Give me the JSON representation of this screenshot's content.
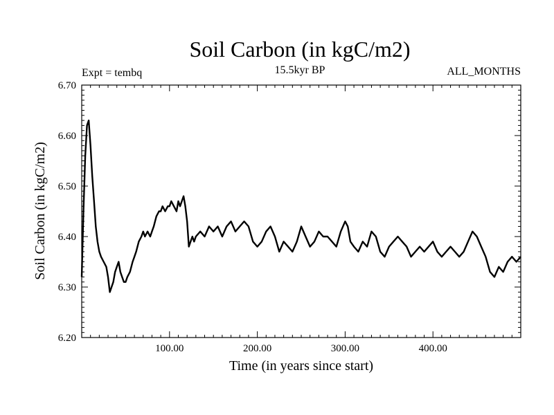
{
  "header": {
    "title": "Soil Carbon (in kgC/m2)",
    "subtitle_left": "Expt = tembq",
    "subtitle_center": "15.5kyr BP",
    "subtitle_right": "ALL_MONTHS"
  },
  "chart_data": {
    "type": "line",
    "title": "Soil Carbon (in kgC/m2)",
    "xlabel": "Time (in years since start)",
    "ylabel": "Soil Carbon (in kgC/m2)",
    "xlim": [
      0,
      500
    ],
    "ylim": [
      6.2,
      6.7
    ],
    "x_ticks": [
      100,
      200,
      300,
      400
    ],
    "x_tick_labels": [
      "100.00",
      "200.00",
      "300.00",
      "400.00"
    ],
    "y_ticks": [
      6.2,
      6.3,
      6.4,
      6.5,
      6.6,
      6.7
    ],
    "y_tick_labels": [
      "6.20",
      "6.30",
      "6.40",
      "6.50",
      "6.60",
      "6.70"
    ],
    "grid": false,
    "legend": "none",
    "line_color": "#000000",
    "series": [
      {
        "x": [
          0,
          2,
          4,
          6,
          8,
          10,
          12,
          14,
          16,
          18,
          20,
          22,
          25,
          28,
          30,
          32,
          34,
          36,
          38,
          40,
          42,
          44,
          46,
          48,
          50,
          52,
          55,
          58,
          60,
          62,
          65,
          68,
          70,
          72,
          75,
          78,
          80,
          82,
          85,
          88,
          90,
          92,
          95,
          98,
          100,
          102,
          105,
          108,
          110,
          112,
          114,
          116,
          118,
          120,
          122,
          124,
          126,
          128,
          130,
          135,
          140,
          145,
          150,
          155,
          160,
          165,
          170,
          175,
          180,
          185,
          190,
          195,
          200,
          205,
          210,
          215,
          220,
          225,
          230,
          235,
          240,
          245,
          250,
          255,
          260,
          265,
          270,
          275,
          280,
          285,
          290,
          295,
          300,
          303,
          306,
          310,
          315,
          320,
          325,
          330,
          335,
          340,
          345,
          350,
          355,
          360,
          365,
          370,
          375,
          380,
          385,
          390,
          395,
          400,
          405,
          410,
          415,
          420,
          425,
          430,
          435,
          440,
          445,
          450,
          455,
          460,
          465,
          470,
          475,
          480,
          485,
          490,
          495,
          500
        ],
        "y": [
          6.32,
          6.45,
          6.56,
          6.62,
          6.63,
          6.58,
          6.52,
          6.47,
          6.42,
          6.39,
          6.37,
          6.36,
          6.35,
          6.34,
          6.32,
          6.29,
          6.3,
          6.31,
          6.33,
          6.34,
          6.35,
          6.33,
          6.32,
          6.31,
          6.31,
          6.32,
          6.33,
          6.35,
          6.36,
          6.37,
          6.39,
          6.4,
          6.41,
          6.4,
          6.41,
          6.4,
          6.41,
          6.42,
          6.44,
          6.45,
          6.45,
          6.46,
          6.45,
          6.46,
          6.46,
          6.47,
          6.46,
          6.45,
          6.47,
          6.46,
          6.47,
          6.48,
          6.46,
          6.43,
          6.38,
          6.39,
          6.4,
          6.39,
          6.4,
          6.41,
          6.4,
          6.42,
          6.41,
          6.42,
          6.4,
          6.42,
          6.43,
          6.41,
          6.42,
          6.43,
          6.42,
          6.39,
          6.38,
          6.39,
          6.41,
          6.42,
          6.4,
          6.37,
          6.39,
          6.38,
          6.37,
          6.39,
          6.42,
          6.4,
          6.38,
          6.39,
          6.41,
          6.4,
          6.4,
          6.39,
          6.38,
          6.41,
          6.43,
          6.42,
          6.39,
          6.38,
          6.37,
          6.39,
          6.38,
          6.41,
          6.4,
          6.37,
          6.36,
          6.38,
          6.39,
          6.4,
          6.39,
          6.38,
          6.36,
          6.37,
          6.38,
          6.37,
          6.38,
          6.39,
          6.37,
          6.36,
          6.37,
          6.38,
          6.37,
          6.36,
          6.37,
          6.39,
          6.41,
          6.4,
          6.38,
          6.36,
          6.33,
          6.32,
          6.34,
          6.33,
          6.35,
          6.36,
          6.35,
          6.36
        ]
      }
    ]
  }
}
